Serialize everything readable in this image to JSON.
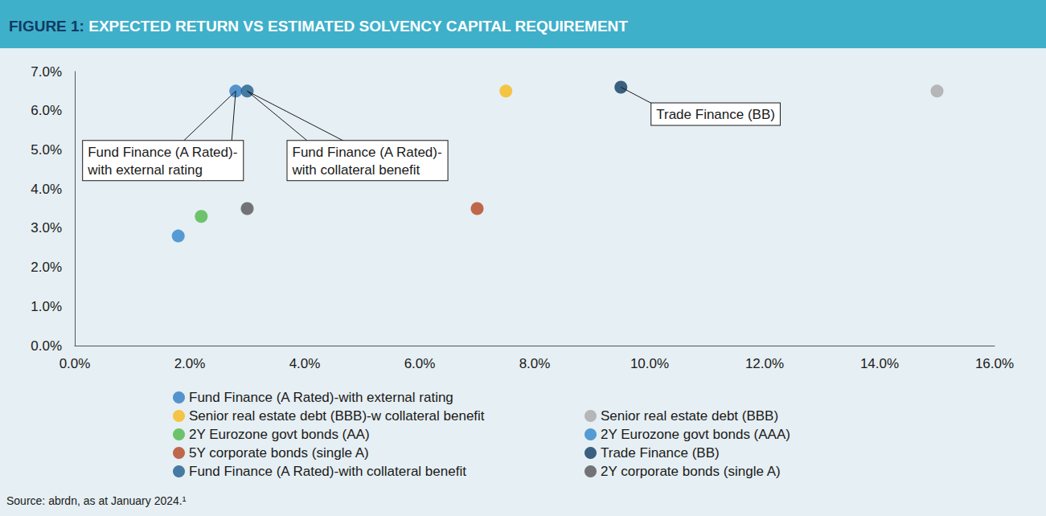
{
  "chart_data": {
    "type": "scatter",
    "title": "FIGURE 1: EXPECTED RETURN VS ESTIMATED SOLVENCY CAPITAL REQUIREMENT",
    "source": "Source: abrdn, as at January 2024.¹",
    "xlim": [
      0,
      16
    ],
    "xticks": [
      {
        "value": 0,
        "label": "0.0%"
      },
      {
        "value": 2,
        "label": "2.0%"
      },
      {
        "value": 4,
        "label": "4.0%"
      },
      {
        "value": 6,
        "label": "6.0%"
      },
      {
        "value": 8,
        "label": "8.0%"
      },
      {
        "value": 10,
        "label": "10.0%"
      },
      {
        "value": 12,
        "label": "12.0%"
      },
      {
        "value": 14,
        "label": "14.0%"
      },
      {
        "value": 16,
        "label": "16.0%"
      }
    ],
    "ylim": [
      0,
      7
    ],
    "yticks": [
      {
        "value": 0,
        "label": "0.0%"
      },
      {
        "value": 1,
        "label": "1.0%"
      },
      {
        "value": 2,
        "label": "2.0%"
      },
      {
        "value": 3,
        "label": "3.0%"
      },
      {
        "value": 4,
        "label": "4.0%"
      },
      {
        "value": 5,
        "label": "5.0%"
      },
      {
        "value": 6,
        "label": "6.0%"
      },
      {
        "value": 7,
        "label": "7.0%"
      }
    ],
    "grid": false,
    "legend": "bottom",
    "series": [
      {
        "name": "Fund Finance (A Rated)-with external rating",
        "color": "#2f7cc2",
        "x": [
          2.8
        ],
        "values": [
          6.5
        ]
      },
      {
        "name": "Senior real estate debt (BBB)",
        "color": "#a8a8a8",
        "x": [
          15.0
        ],
        "values": [
          6.5
        ]
      },
      {
        "name": "Senior real estate debt (BBB)-w collateral benefit",
        "color": "#f7b918",
        "x": [
          7.5
        ],
        "values": [
          6.5
        ]
      },
      {
        "name": "2Y Eurozone govt bonds (AAA)",
        "color": "#2f86cc",
        "x": [
          1.8
        ],
        "values": [
          2.8
        ]
      },
      {
        "name": "2Y Eurozone govt bonds (AA)",
        "color": "#4db84a",
        "x": [
          2.2
        ],
        "values": [
          3.3
        ]
      },
      {
        "name": "Trade Finance (BB)",
        "color": "#0f3b63",
        "x": [
          9.5
        ],
        "values": [
          6.6
        ]
      },
      {
        "name": "5Y corporate bonds (single A)",
        "color": "#b5451f",
        "x": [
          7.0
        ],
        "values": [
          3.5
        ]
      },
      {
        "name": "2Y corporate bonds (single A)",
        "color": "#545454",
        "x": [
          3.0
        ],
        "values": [
          3.5
        ]
      },
      {
        "name": "Fund Finance (A Rated)-with collateral benefit",
        "color": "#1d5c8f",
        "x": [
          3.0
        ],
        "values": [
          6.5
        ]
      }
    ],
    "annotations": [
      {
        "text": "Fund Finance (A Rated)-\nwith external rating",
        "x": 2.8,
        "y": 6.5
      },
      {
        "text": "Fund Finance (A Rated)-\nwith collateral benefit",
        "x": 3.0,
        "y": 6.5
      },
      {
        "text": "Trade Finance (BB)",
        "x": 9.5,
        "y": 6.6
      }
    ]
  }
}
